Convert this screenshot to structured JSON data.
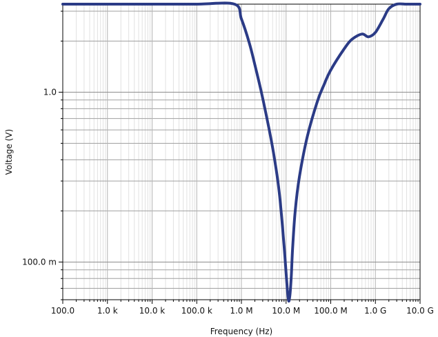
{
  "chart_data": {
    "type": "line",
    "title": "",
    "xlabel": "Frequency (Hz)",
    "ylabel": "Voltage (V)",
    "x_scale": "log",
    "y_scale": "log",
    "xlim": [
      100,
      10000000000
    ],
    "ylim": [
      0.06,
      3.3
    ],
    "grid": true,
    "x_tick_labels": [
      "100.0",
      "1.0 k",
      "10.0 k",
      "100.0 k",
      "1.0 M",
      "10.0 M",
      "100.0 M",
      "1.0 G",
      "10.0 G"
    ],
    "y_tick_labels": [
      "100.0 m",
      "1.0"
    ],
    "series": [
      {
        "color": "#2b3b86",
        "x": [
          100,
          1000,
          10000,
          100000,
          700000,
          1000000,
          1500000,
          2000000,
          3000000,
          5000000,
          7000000,
          9000000,
          11000000,
          12000000,
          13000000,
          14000000,
          16000000,
          20000000,
          30000000,
          50000000,
          70000000,
          100000000,
          200000000,
          300000000,
          500000000,
          700000000,
          1000000000,
          1500000000,
          2000000000,
          3000000000,
          5000000000,
          10000000000
        ],
        "y": [
          3.3,
          3.3,
          3.3,
          3.3,
          3.3,
          2.7,
          1.95,
          1.45,
          0.92,
          0.47,
          0.26,
          0.125,
          0.063,
          0.062,
          0.08,
          0.12,
          0.2,
          0.32,
          0.55,
          0.88,
          1.1,
          1.35,
          1.8,
          2.05,
          2.2,
          2.12,
          2.25,
          2.7,
          3.1,
          3.3,
          3.3,
          3.3
        ]
      }
    ]
  }
}
